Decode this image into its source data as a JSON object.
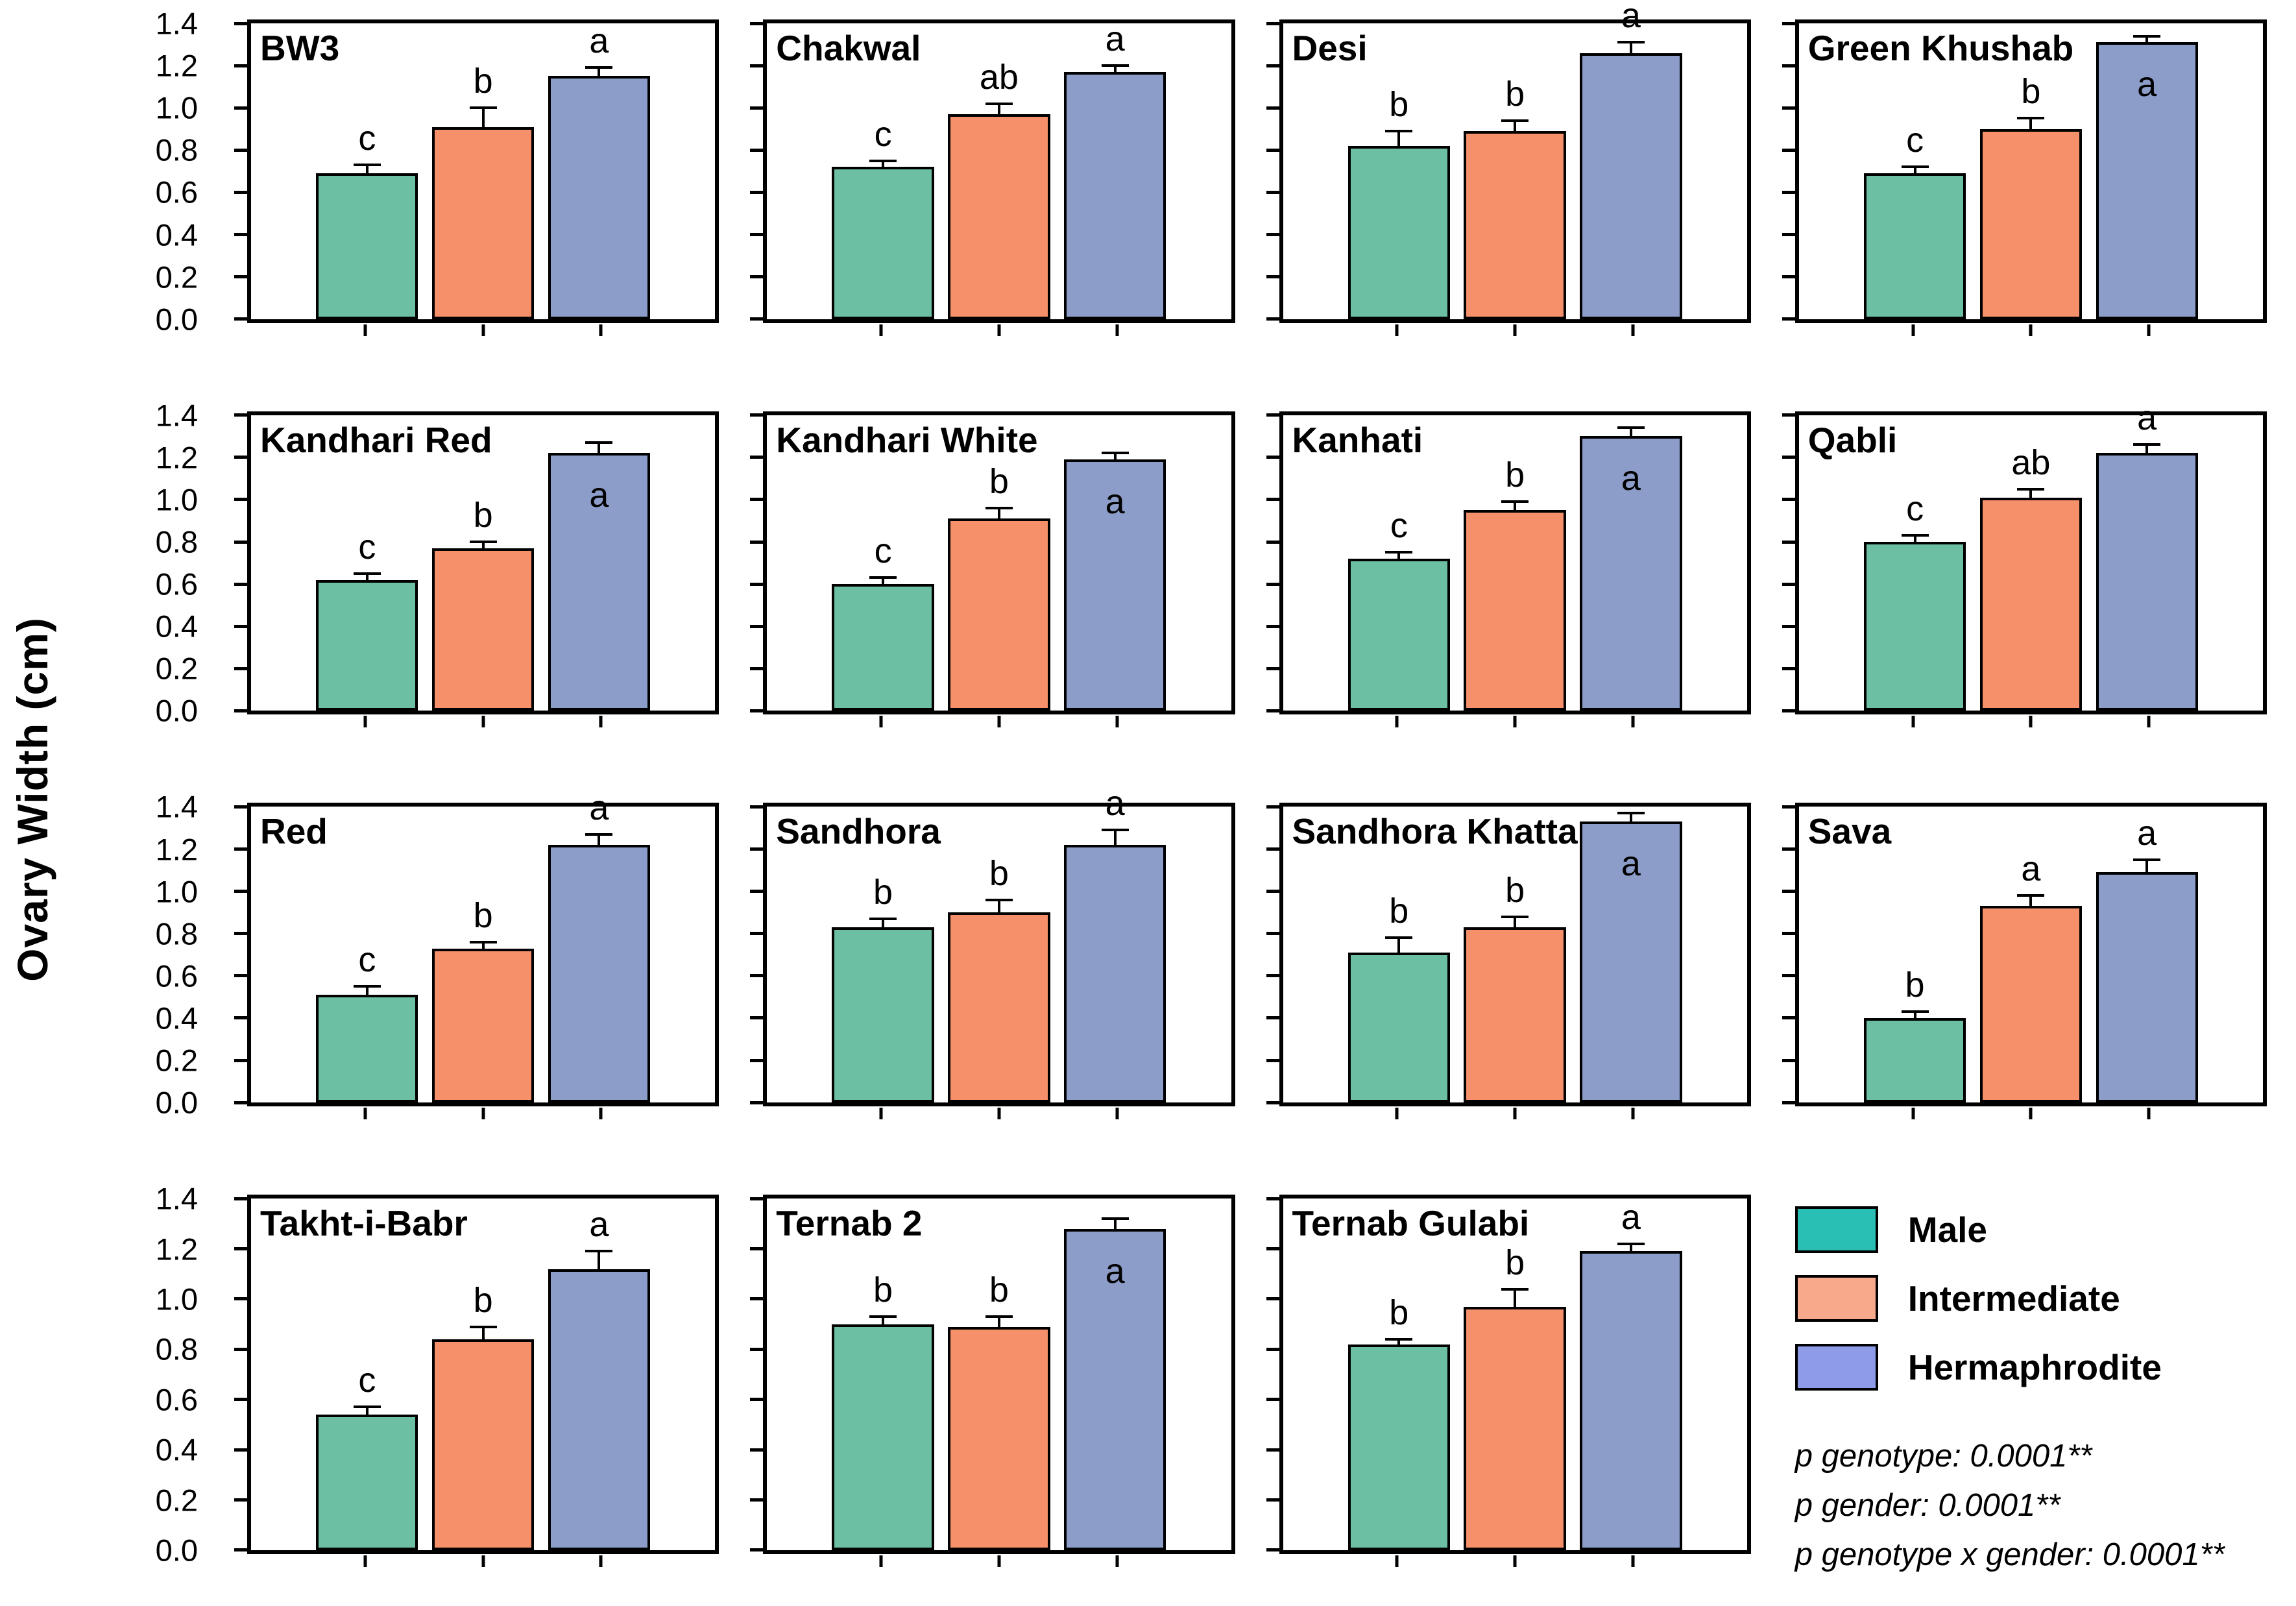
{
  "figure": {
    "ylabel": "Ovary Width (cm)",
    "ymax": 1.4,
    "yticks": [
      1.4,
      1.2,
      1.0,
      0.8,
      0.6,
      0.4,
      0.2,
      0.0
    ],
    "grid": "off",
    "bar_colors": [
      "#6CBFA3",
      "#F5906A",
      "#8C9DC9"
    ],
    "bar_outline": "#000000",
    "legend": {
      "position": "bottom-right-cell",
      "items": [
        {
          "label": "Male",
          "color": "#2ABFB4"
        },
        {
          "label": "Intermediate",
          "color": "#F9A98B"
        },
        {
          "label": "Hermaphrodite",
          "color": "#8E9BE8"
        }
      ]
    },
    "stats_lines": [
      "p genotype: 0.0001**",
      "p gender: 0.0001**",
      "p genotype x gender: 0.0001**"
    ]
  },
  "chart_data": [
    {
      "type": "bar",
      "title": "BW3",
      "categories": [
        "Male",
        "Intermediate",
        "Hermaphrodite"
      ],
      "values": [
        0.69,
        0.91,
        1.15
      ],
      "errors": [
        0.04,
        0.09,
        0.04
      ],
      "letters": [
        "c",
        "b",
        "a"
      ],
      "letters_inside": [
        false,
        false,
        false
      ],
      "ylim": [
        0,
        1.4
      ]
    },
    {
      "type": "bar",
      "title": "Chakwal",
      "categories": [
        "Male",
        "Intermediate",
        "Hermaphrodite"
      ],
      "values": [
        0.72,
        0.97,
        1.17
      ],
      "errors": [
        0.03,
        0.05,
        0.03
      ],
      "letters": [
        "c",
        "ab",
        "a"
      ],
      "letters_inside": [
        false,
        false,
        false
      ],
      "ylim": [
        0,
        1.4
      ]
    },
    {
      "type": "bar",
      "title": "Desi",
      "categories": [
        "Male",
        "Intermediate",
        "Hermaphrodite"
      ],
      "values": [
        0.82,
        0.89,
        1.26
      ],
      "errors": [
        0.07,
        0.05,
        0.05
      ],
      "letters": [
        "b",
        "b",
        "a"
      ],
      "letters_inside": [
        false,
        false,
        false
      ],
      "ylim": [
        0,
        1.4
      ]
    },
    {
      "type": "bar",
      "title": "Green Khushab",
      "categories": [
        "Male",
        "Intermediate",
        "Hermaphrodite"
      ],
      "values": [
        0.69,
        0.9,
        1.31
      ],
      "errors": [
        0.03,
        0.05,
        0.03
      ],
      "letters": [
        "c",
        "b",
        "a"
      ],
      "letters_inside": [
        false,
        false,
        true
      ],
      "ylim": [
        0,
        1.4
      ]
    },
    {
      "type": "bar",
      "title": "Kandhari Red",
      "categories": [
        "Male",
        "Intermediate",
        "Hermaphrodite"
      ],
      "values": [
        0.62,
        0.77,
        1.22
      ],
      "errors": [
        0.03,
        0.03,
        0.05
      ],
      "letters": [
        "c",
        "b",
        "a"
      ],
      "letters_inside": [
        false,
        false,
        true
      ],
      "ylim": [
        0,
        1.4
      ]
    },
    {
      "type": "bar",
      "title": "Kandhari White",
      "categories": [
        "Male",
        "Intermediate",
        "Hermaphrodite"
      ],
      "values": [
        0.6,
        0.91,
        1.19
      ],
      "errors": [
        0.03,
        0.05,
        0.03
      ],
      "letters": [
        "c",
        "b",
        "a"
      ],
      "letters_inside": [
        false,
        false,
        true
      ],
      "ylim": [
        0,
        1.4
      ]
    },
    {
      "type": "bar",
      "title": "Kanhati",
      "categories": [
        "Male",
        "Intermediate",
        "Hermaphrodite"
      ],
      "values": [
        0.72,
        0.95,
        1.3
      ],
      "errors": [
        0.03,
        0.04,
        0.04
      ],
      "letters": [
        "c",
        "b",
        "a"
      ],
      "letters_inside": [
        false,
        false,
        true
      ],
      "ylim": [
        0,
        1.4
      ]
    },
    {
      "type": "bar",
      "title": "Qabli",
      "categories": [
        "Male",
        "Intermediate",
        "Hermaphrodite"
      ],
      "values": [
        0.8,
        1.01,
        1.22
      ],
      "errors": [
        0.03,
        0.04,
        0.04
      ],
      "letters": [
        "c",
        "ab",
        "a"
      ],
      "letters_inside": [
        false,
        false,
        false
      ],
      "ylim": [
        0,
        1.4
      ]
    },
    {
      "type": "bar",
      "title": "Red",
      "categories": [
        "Male",
        "Intermediate",
        "Hermaphrodite"
      ],
      "values": [
        0.51,
        0.73,
        1.22
      ],
      "errors": [
        0.04,
        0.03,
        0.05
      ],
      "letters": [
        "c",
        "b",
        "a"
      ],
      "letters_inside": [
        false,
        false,
        false
      ],
      "ylim": [
        0,
        1.4
      ]
    },
    {
      "type": "bar",
      "title": "Sandhora",
      "categories": [
        "Male",
        "Intermediate",
        "Hermaphrodite"
      ],
      "values": [
        0.83,
        0.9,
        1.22
      ],
      "errors": [
        0.04,
        0.06,
        0.07
      ],
      "letters": [
        "b",
        "b",
        "a"
      ],
      "letters_inside": [
        false,
        false,
        false
      ],
      "ylim": [
        0,
        1.4
      ]
    },
    {
      "type": "bar",
      "title": "Sandhora Khatta",
      "categories": [
        "Male",
        "Intermediate",
        "Hermaphrodite"
      ],
      "values": [
        0.71,
        0.83,
        1.33
      ],
      "errors": [
        0.07,
        0.05,
        0.04
      ],
      "letters": [
        "b",
        "b",
        "a"
      ],
      "letters_inside": [
        false,
        false,
        true
      ],
      "ylim": [
        0,
        1.4
      ]
    },
    {
      "type": "bar",
      "title": "Sava",
      "categories": [
        "Male",
        "Intermediate",
        "Hermaphrodite"
      ],
      "values": [
        0.4,
        0.93,
        1.09
      ],
      "errors": [
        0.03,
        0.05,
        0.06
      ],
      "letters": [
        "b",
        "a",
        "a"
      ],
      "letters_inside": [
        false,
        false,
        false
      ],
      "ylim": [
        0,
        1.4
      ]
    },
    {
      "type": "bar",
      "title": "Takht-i-Babr",
      "categories": [
        "Male",
        "Intermediate",
        "Hermaphrodite"
      ],
      "values": [
        0.54,
        0.84,
        1.12
      ],
      "errors": [
        0.03,
        0.05,
        0.07
      ],
      "letters": [
        "c",
        "b",
        "a"
      ],
      "letters_inside": [
        false,
        false,
        false
      ],
      "ylim": [
        0,
        1.4
      ]
    },
    {
      "type": "bar",
      "title": "Ternab 2",
      "categories": [
        "Male",
        "Intermediate",
        "Hermaphrodite"
      ],
      "values": [
        0.9,
        0.89,
        1.28
      ],
      "errors": [
        0.03,
        0.04,
        0.04
      ],
      "letters": [
        "b",
        "b",
        "a"
      ],
      "letters_inside": [
        false,
        false,
        true
      ],
      "ylim": [
        0,
        1.4
      ]
    },
    {
      "type": "bar",
      "title": "Ternab Gulabi",
      "categories": [
        "Male",
        "Intermediate",
        "Hermaphrodite"
      ],
      "values": [
        0.82,
        0.97,
        1.19
      ],
      "errors": [
        0.02,
        0.07,
        0.03
      ],
      "letters": [
        "b",
        "b",
        "a"
      ],
      "letters_inside": [
        false,
        false,
        false
      ],
      "ylim": [
        0,
        1.4
      ]
    }
  ]
}
